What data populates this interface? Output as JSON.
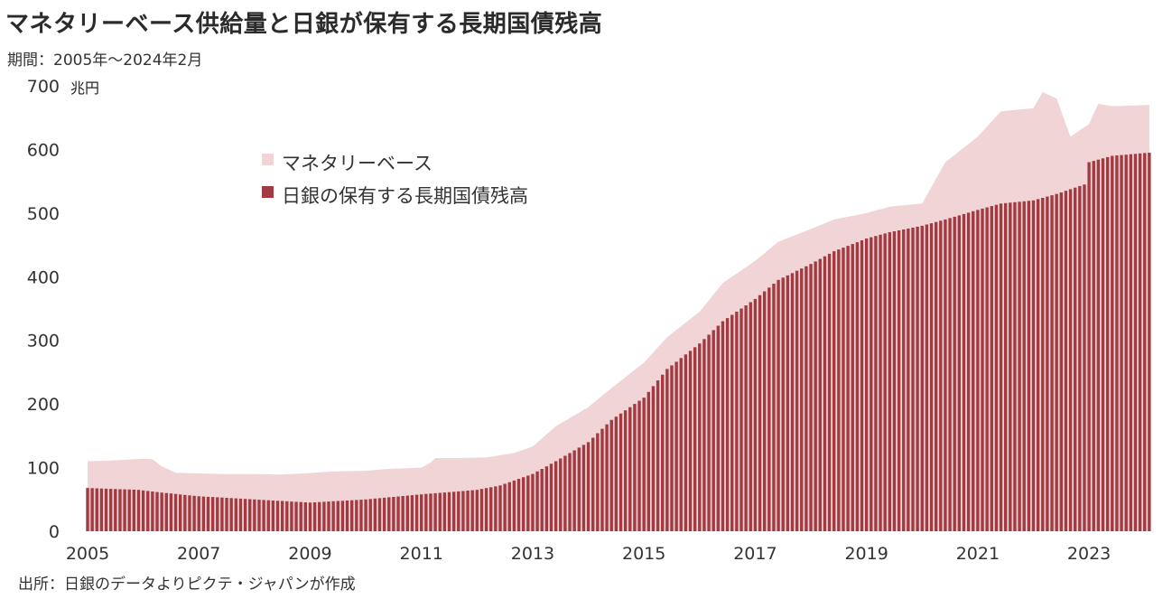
{
  "title": "マネタリーベース供給量と日銀が保有する長期国債残高",
  "subtitle": "期間：2005年〜2024年2月",
  "source": "出所：日銀のデータよりピクテ・ジャパンが作成",
  "colors": {
    "area": "#f0d4d6",
    "bar": "#a33a42"
  },
  "chart_data": {
    "type": "area",
    "unit": "兆円",
    "ylim": [
      0,
      700
    ],
    "yticks": [
      "0",
      "100",
      "200",
      "300",
      "400",
      "500",
      "600",
      "700"
    ],
    "x_ticks": [
      "2005",
      "2007",
      "2009",
      "2011",
      "2013",
      "2015",
      "2017",
      "2019",
      "2021",
      "2023"
    ],
    "grid": false,
    "legend_position": "upper-left, inside plot",
    "series": [
      {
        "name": "マネタリーベース",
        "style": "area",
        "points": [
          [
            "2005-01",
            110
          ],
          [
            "2005-06",
            111
          ],
          [
            "2006-01",
            114
          ],
          [
            "2006-03",
            113
          ],
          [
            "2006-05",
            102
          ],
          [
            "2006-08",
            92
          ],
          [
            "2006-12",
            91
          ],
          [
            "2007-06",
            90
          ],
          [
            "2008-01",
            90
          ],
          [
            "2008-06",
            89
          ],
          [
            "2008-12",
            91
          ],
          [
            "2009-06",
            94
          ],
          [
            "2010-01",
            95
          ],
          [
            "2010-06",
            98
          ],
          [
            "2011-01",
            100
          ],
          [
            "2011-03",
            108
          ],
          [
            "2011-04",
            115
          ],
          [
            "2011-09",
            115
          ],
          [
            "2012-03",
            116
          ],
          [
            "2012-09",
            123
          ],
          [
            "2013-01",
            133
          ],
          [
            "2013-06",
            165
          ],
          [
            "2014-01",
            195
          ],
          [
            "2014-06",
            225
          ],
          [
            "2015-01",
            265
          ],
          [
            "2015-06",
            305
          ],
          [
            "2016-01",
            345
          ],
          [
            "2016-06",
            390
          ],
          [
            "2017-01",
            425
          ],
          [
            "2017-06",
            455
          ],
          [
            "2018-01",
            475
          ],
          [
            "2018-06",
            490
          ],
          [
            "2019-01",
            500
          ],
          [
            "2019-06",
            510
          ],
          [
            "2020-01",
            515
          ],
          [
            "2020-06",
            580
          ],
          [
            "2021-01",
            620
          ],
          [
            "2021-06",
            660
          ],
          [
            "2022-01",
            665
          ],
          [
            "2022-03",
            690
          ],
          [
            "2022-06",
            680
          ],
          [
            "2022-09",
            620
          ],
          [
            "2023-01",
            640
          ],
          [
            "2023-03",
            672
          ],
          [
            "2023-06",
            668
          ],
          [
            "2024-02",
            670
          ]
        ]
      },
      {
        "name": "日銀の保有する長期国債残高",
        "style": "bar",
        "points": [
          [
            "2005-01",
            68
          ],
          [
            "2005-12",
            65
          ],
          [
            "2006-06",
            60
          ],
          [
            "2007-01",
            55
          ],
          [
            "2008-01",
            50
          ],
          [
            "2009-01",
            45
          ],
          [
            "2010-01",
            50
          ],
          [
            "2011-01",
            58
          ],
          [
            "2012-01",
            65
          ],
          [
            "2012-06",
            72
          ],
          [
            "2013-01",
            90
          ],
          [
            "2013-06",
            110
          ],
          [
            "2014-01",
            140
          ],
          [
            "2014-06",
            175
          ],
          [
            "2015-01",
            210
          ],
          [
            "2015-06",
            255
          ],
          [
            "2016-01",
            295
          ],
          [
            "2016-06",
            330
          ],
          [
            "2017-01",
            365
          ],
          [
            "2017-06",
            395
          ],
          [
            "2018-01",
            420
          ],
          [
            "2018-06",
            440
          ],
          [
            "2019-01",
            460
          ],
          [
            "2019-06",
            470
          ],
          [
            "2020-01",
            480
          ],
          [
            "2020-06",
            490
          ],
          [
            "2021-01",
            505
          ],
          [
            "2021-06",
            515
          ],
          [
            "2022-01",
            520
          ],
          [
            "2022-06",
            530
          ],
          [
            "2022-12",
            545
          ],
          [
            "2023-01",
            580
          ],
          [
            "2023-06",
            590
          ],
          [
            "2024-02",
            595
          ]
        ]
      }
    ]
  }
}
